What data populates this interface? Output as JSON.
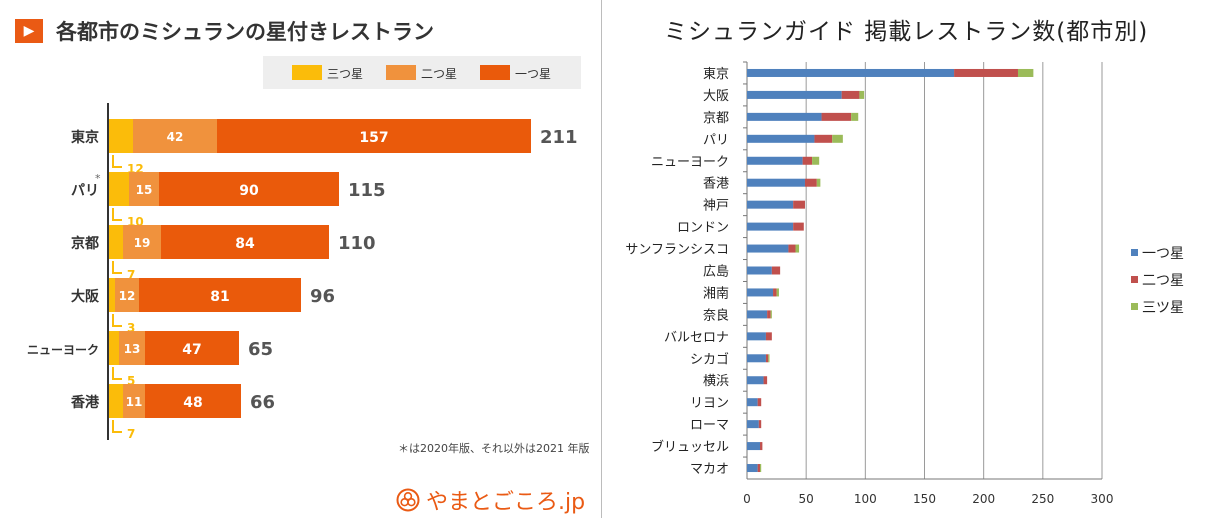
{
  "left": {
    "title_mark": "▶",
    "title": "各都市のミシュランの星付きレストラン",
    "footnote": "＊は2020年版、それ以外は2021 年版",
    "brand": "やまとごころ.jp",
    "colors": {
      "three": "#fbbc0a",
      "two": "#f0923d",
      "one": "#ea5a0b",
      "legend_bg": "#eeeeee"
    }
  },
  "right": {
    "title": "ミシュランガイド 掲載レストラン数(都市別)",
    "colors": {
      "one": "#4f81bd",
      "two": "#c0504d",
      "three": "#9bbb59"
    }
  },
  "chart_data": [
    {
      "type": "bar",
      "orientation": "horizontal",
      "stacked": true,
      "legend_position": "top",
      "categories": [
        "東京",
        "パリ",
        "京都",
        "大阪",
        "ニューヨーク",
        "香港"
      ],
      "category_markers": [
        "",
        "*",
        "",
        "",
        "",
        ""
      ],
      "series": [
        {
          "name": "三つ星",
          "values": [
            12,
            10,
            7,
            3,
            5,
            7
          ]
        },
        {
          "name": "二つ星",
          "values": [
            42,
            15,
            19,
            12,
            13,
            11
          ]
        },
        {
          "name": "一つ星",
          "values": [
            157,
            90,
            84,
            81,
            47,
            48
          ]
        }
      ],
      "totals": [
        211,
        115,
        110,
        96,
        65,
        66
      ]
    },
    {
      "type": "bar",
      "orientation": "horizontal",
      "stacked": true,
      "legend_position": "right",
      "grid": true,
      "xlim": [
        0,
        300
      ],
      "xticks": [
        0,
        50,
        100,
        150,
        200,
        250,
        300
      ],
      "categories": [
        "東京",
        "大阪",
        "京都",
        "パリ",
        "ニューヨーク",
        "香港",
        "神戸",
        "ロンドン",
        "サンフランシスコ",
        "広島",
        "湘南",
        "奈良",
        "バルセロナ",
        "シカゴ",
        "横浜",
        "リヨン",
        "ローマ",
        "ブリュッセル",
        "マカオ"
      ],
      "series": [
        {
          "name": "一つ星",
          "values": [
            175,
            80,
            63,
            57,
            47,
            49,
            39,
            39,
            35,
            21,
            22,
            17,
            16,
            16,
            14,
            9,
            10,
            11,
            9
          ]
        },
        {
          "name": "二つ星",
          "values": [
            54,
            15,
            25,
            15,
            8,
            10,
            10,
            9,
            6,
            7,
            3,
            3,
            5,
            2,
            3,
            3,
            2,
            2,
            2
          ]
        },
        {
          "name": "三ツ星",
          "values": [
            13,
            4,
            6,
            9,
            6,
            3,
            0,
            0,
            3,
            0,
            2,
            1,
            0,
            1,
            0,
            0,
            0,
            0,
            1
          ]
        }
      ]
    }
  ]
}
